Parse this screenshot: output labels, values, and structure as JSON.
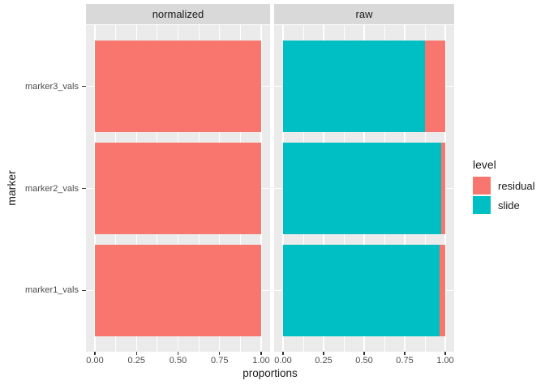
{
  "figure": {
    "background": "#FFFFFF",
    "panel_background": "#EBEBEB",
    "strip_background": "#D9D9D9",
    "grid_color": "#FFFFFF",
    "axis_text_color": "#4D4D4D",
    "title_text_color": "#1A1A1A",
    "tick_color": "#333333"
  },
  "chart_data": {
    "type": "bar",
    "orientation": "horizontal",
    "stacked": true,
    "title": "",
    "xlabel": "proportions",
    "ylabel": "marker",
    "xlim": [
      0,
      1
    ],
    "grid": true,
    "x_ticks": [
      0,
      0.25,
      0.5,
      0.75,
      1
    ],
    "x_tick_labels": [
      "0.00",
      "0.25",
      "0.50",
      "0.75",
      "1.00"
    ],
    "x_minor_ticks": [
      0.125,
      0.375,
      0.625,
      0.875
    ],
    "categories_top_to_bottom": [
      "marker3_vals",
      "marker2_vals",
      "marker1_vals"
    ],
    "legend": {
      "title": "level",
      "position": "right",
      "entries": [
        {
          "label": "residual",
          "color": "#F8766D"
        },
        {
          "label": "slide",
          "color": "#00BFC4"
        }
      ]
    },
    "facets": [
      {
        "label": "normalized",
        "series": [
          {
            "name": "slide",
            "color": "#00BFC4",
            "values": [
              0,
              0,
              0
            ]
          },
          {
            "name": "residual",
            "color": "#F8766D",
            "values": [
              1,
              1,
              1
            ]
          }
        ]
      },
      {
        "label": "raw",
        "series": [
          {
            "name": "slide",
            "color": "#00BFC4",
            "values": [
              0.875,
              0.975,
              0.965
            ]
          },
          {
            "name": "residual",
            "color": "#F8766D",
            "values": [
              0.125,
              0.025,
              0.035
            ]
          }
        ]
      }
    ]
  }
}
